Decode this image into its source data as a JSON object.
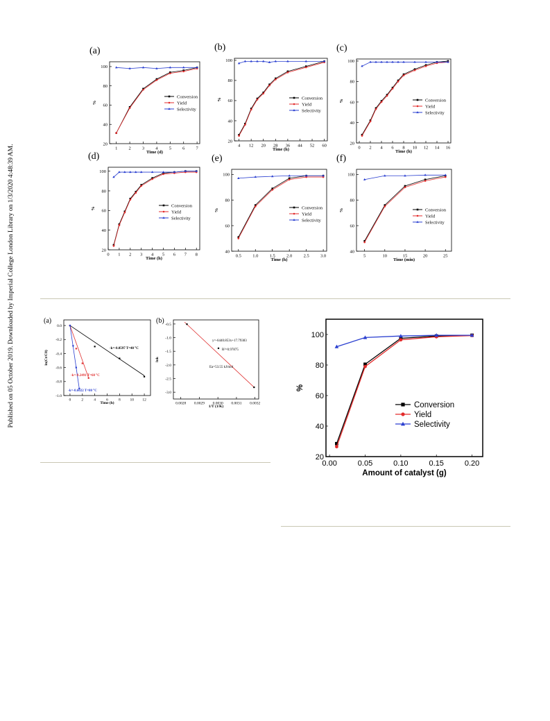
{
  "watermark": "Published on 05 October 2019. Downloaded by Imperial College London Library on 1/3/2020 4:48:39 AM.",
  "colors": {
    "conversion": "#000000",
    "yield": "#e32b2b",
    "selectivity": "#2a3fd0",
    "ratefit": "#e03030"
  },
  "chart_data": [
    {
      "id": "a",
      "type": "line",
      "panel_label": "(a)",
      "xlabel": "Time (d)",
      "ylabel": "%",
      "xlim": [
        0.5,
        7.2
      ],
      "ylim": [
        20,
        105
      ],
      "xticks": [
        1,
        2,
        3,
        4,
        5,
        6,
        7
      ],
      "yticks": [
        20,
        40,
        60,
        80,
        100
      ],
      "series": [
        {
          "name": "Conversion",
          "x": [
            1,
            2,
            3,
            4,
            5,
            6,
            7
          ],
          "y": [
            31,
            58,
            77,
            87,
            94,
            96,
            99
          ]
        },
        {
          "name": "Yield",
          "x": [
            1,
            2,
            3,
            4,
            5,
            6,
            7
          ],
          "y": [
            31,
            57,
            76,
            86,
            93,
            95,
            98
          ]
        },
        {
          "name": "Selectivity",
          "x": [
            1,
            2,
            3,
            4,
            5,
            6,
            7
          ],
          "y": [
            99,
            98,
            99,
            98,
            99,
            99,
            99
          ]
        }
      ]
    },
    {
      "id": "b",
      "type": "line",
      "panel_label": "(b)",
      "xlabel": "Time (h)",
      "ylabel": "%",
      "xlim": [
        1,
        62
      ],
      "ylim": [
        20,
        102
      ],
      "xticks": [
        4,
        12,
        20,
        28,
        36,
        44,
        52,
        60
      ],
      "yticks": [
        20,
        40,
        60,
        80,
        100
      ],
      "series": [
        {
          "name": "Conversion",
          "x": [
            4,
            8,
            12,
            16,
            20,
            24,
            28,
            36,
            48,
            60
          ],
          "y": [
            26,
            37,
            52,
            62,
            68,
            76,
            82,
            89,
            94,
            99
          ]
        },
        {
          "name": "Yield",
          "x": [
            4,
            8,
            12,
            16,
            20,
            24,
            28,
            36,
            48,
            60
          ],
          "y": [
            25,
            36,
            51,
            61,
            67,
            75,
            81,
            88,
            93,
            98
          ]
        },
        {
          "name": "Selectivity",
          "x": [
            4,
            8,
            12,
            16,
            20,
            24,
            28,
            36,
            48,
            60
          ],
          "y": [
            97,
            99,
            99,
            99,
            99,
            98,
            99,
            99,
            99,
            99
          ]
        }
      ]
    },
    {
      "id": "c",
      "type": "line",
      "panel_label": "(c)",
      "xlabel": "Time (h)",
      "ylabel": "%",
      "xlim": [
        -0.5,
        16.5
      ],
      "ylim": [
        20,
        102
      ],
      "xticks": [
        0,
        2,
        4,
        6,
        8,
        10,
        12,
        14,
        16
      ],
      "yticks": [
        20,
        40,
        60,
        80,
        100
      ],
      "series": [
        {
          "name": "Conversion",
          "x": [
            0.5,
            2,
            3,
            4,
            5,
            6,
            7,
            8,
            10,
            12,
            14,
            16
          ],
          "y": [
            28,
            42,
            54,
            61,
            67,
            74,
            81,
            87,
            92,
            96,
            99,
            100
          ]
        },
        {
          "name": "Yield",
          "x": [
            0.5,
            2,
            3,
            4,
            5,
            6,
            7,
            8,
            10,
            12,
            14,
            16
          ],
          "y": [
            27,
            41,
            53,
            60,
            66,
            73,
            80,
            86,
            91,
            95,
            98,
            99
          ]
        },
        {
          "name": "Selectivity",
          "x": [
            0.5,
            2,
            3,
            4,
            5,
            6,
            7,
            8,
            10,
            12,
            14,
            16
          ],
          "y": [
            95,
            99,
            99,
            99,
            99,
            99,
            99,
            99,
            99,
            99,
            99,
            99
          ]
        }
      ]
    },
    {
      "id": "d",
      "type": "line",
      "panel_label": "(d)",
      "xlabel": "Time (h)",
      "ylabel": "%",
      "xlim": [
        0,
        8.3
      ],
      "ylim": [
        20,
        104
      ],
      "xticks": [
        0,
        1,
        2,
        3,
        4,
        5,
        6,
        7,
        8
      ],
      "yticks": [
        20,
        40,
        60,
        80,
        100
      ],
      "series": [
        {
          "name": "Conversion",
          "x": [
            0.5,
            1,
            1.5,
            2,
            2.5,
            3,
            4,
            5,
            6,
            7,
            8
          ],
          "y": [
            25,
            46,
            59,
            72,
            79,
            86,
            93,
            98,
            99,
            100,
            100
          ]
        },
        {
          "name": "Yield",
          "x": [
            0.5,
            1,
            1.5,
            2,
            2.5,
            3,
            4,
            5,
            6,
            7,
            8
          ],
          "y": [
            24,
            45,
            58,
            71,
            78,
            85,
            92,
            97,
            98,
            99,
            99
          ]
        },
        {
          "name": "Selectivity",
          "x": [
            0.5,
            1,
            1.5,
            2,
            2.5,
            3,
            4,
            5,
            6,
            7,
            8
          ],
          "y": [
            94,
            99,
            99,
            99,
            99,
            99,
            99,
            99,
            99,
            100,
            100
          ]
        }
      ]
    },
    {
      "id": "e",
      "type": "line",
      "panel_label": "(e)",
      "xlabel": "Time (h)",
      "ylabel": "%",
      "xlim": [
        0.3,
        3.1
      ],
      "ylim": [
        40,
        104
      ],
      "xticks": [
        0.5,
        1.0,
        1.5,
        2.0,
        2.5,
        3.0
      ],
      "yticks": [
        40,
        60,
        80,
        100
      ],
      "series": [
        {
          "name": "Conversion",
          "x": [
            0.5,
            1,
            1.5,
            2,
            2.5,
            3
          ],
          "y": [
            51,
            76,
            89,
            97,
            99,
            99
          ]
        },
        {
          "name": "Yield",
          "x": [
            0.5,
            1,
            1.5,
            2,
            2.5,
            3
          ],
          "y": [
            50,
            75,
            88,
            96,
            98,
            98
          ]
        },
        {
          "name": "Selectivity",
          "x": [
            0.5,
            1,
            1.5,
            2,
            2.5,
            3
          ],
          "y": [
            97,
            98,
            98.5,
            99,
            99,
            99
          ]
        }
      ]
    },
    {
      "id": "f",
      "type": "line",
      "panel_label": "(f)",
      "xlabel": "Time (min)",
      "ylabel": "%",
      "xlim": [
        3,
        26.5
      ],
      "ylim": [
        40,
        104
      ],
      "xticks": [
        5,
        10,
        15,
        20,
        25
      ],
      "yticks": [
        40,
        60,
        80,
        100
      ],
      "series": [
        {
          "name": "Conversion",
          "x": [
            5,
            10,
            15,
            20,
            25
          ],
          "y": [
            48,
            76,
            91,
            96,
            99
          ]
        },
        {
          "name": "Yield",
          "x": [
            5,
            10,
            15,
            20,
            25
          ],
          "y": [
            47,
            75,
            90,
            95,
            98
          ]
        },
        {
          "name": "Selectivity",
          "x": [
            5,
            10,
            15,
            20,
            25
          ],
          "y": [
            96,
            99,
            99,
            99.5,
            99.5
          ]
        }
      ]
    },
    {
      "id": "k1",
      "type": "line",
      "panel_label": "(a)",
      "xlabel": "Time (h)",
      "ylabel": "ln(Ct/C0)",
      "xlim": [
        -1,
        13
      ],
      "ylim": [
        -1.0,
        0.08
      ],
      "xticks": [
        0,
        2,
        4,
        6,
        8,
        10,
        12
      ],
      "yticks": [
        -1.0,
        -0.8,
        -0.6,
        -0.4,
        -0.2,
        0.0
      ],
      "points": [
        {
          "name": "T=40 °C",
          "x": [
            0,
            4,
            8,
            12
          ],
          "y": [
            0,
            -0.3,
            -0.47,
            -0.73
          ]
        },
        {
          "name": "T=60 °C",
          "x": [
            0,
            1,
            2,
            3
          ],
          "y": [
            0,
            -0.33,
            -0.54,
            -0.75
          ]
        },
        {
          "name": "T=80 °C",
          "x": [
            0,
            0.5,
            1,
            1.5
          ],
          "y": [
            0,
            -0.29,
            -0.6,
            -0.9
          ]
        }
      ],
      "fits": [
        {
          "slope": -0.0597,
          "x": [
            0,
            12
          ]
        },
        {
          "slope": -0.2491,
          "x": [
            0,
            3
          ]
        },
        {
          "slope": -0.6022,
          "x": [
            0,
            1.5
          ]
        }
      ],
      "annotations": [
        "-k=-0.0597   T=40 °C",
        "-k=-0.2491   T=60 °C",
        "-k=-0.6022   T=80 °C"
      ]
    },
    {
      "id": "k2",
      "type": "scatter",
      "panel_label": "(b)",
      "xlabel": "1/T (1/K)",
      "ylabel": "lnk",
      "xlim": [
        0.00276,
        0.00322
      ],
      "ylim": [
        -3.25,
        -0.35
      ],
      "xticks": [
        0.0028,
        0.0029,
        0.003,
        0.0031,
        0.0032
      ],
      "yticks": [
        -3.0,
        -2.5,
        -2.0,
        -1.5,
        -1.0,
        -0.5
      ],
      "points": {
        "x": [
          0.002833,
          0.003003,
          0.003195
        ],
        "y": [
          -0.507,
          -1.39,
          -2.82
        ]
      },
      "fit": {
        "x": [
          0.00282,
          0.003195
        ],
        "y": [
          -0.43,
          -2.82
        ]
      },
      "annotations": [
        "y=-6440.853x+17.79383",
        "R²=0.97875",
        "Ea=53.55 kJ/mol"
      ]
    },
    {
      "id": "cat",
      "type": "line",
      "panel_label": "",
      "xlabel": "Amount of catalyst (g)",
      "ylabel": "%",
      "xlim": [
        -0.005,
        0.215
      ],
      "ylim": [
        20,
        110
      ],
      "xticks": [
        0.0,
        0.05,
        0.1,
        0.15,
        0.2
      ],
      "yticks": [
        20,
        40,
        60,
        80,
        100
      ],
      "series": [
        {
          "name": "Conversion",
          "x": [
            0.01,
            0.05,
            0.1,
            0.15,
            0.2
          ],
          "y": [
            28.5,
            80.5,
            97.5,
            99,
            99.5
          ]
        },
        {
          "name": "Yield",
          "x": [
            0.01,
            0.05,
            0.1,
            0.15,
            0.2
          ],
          "y": [
            26.5,
            79,
            96.5,
            98.5,
            99.3
          ]
        },
        {
          "name": "Selectivity",
          "x": [
            0.01,
            0.05,
            0.1,
            0.15,
            0.2
          ],
          "y": [
            92,
            98,
            99,
            99.5,
            99.5
          ]
        }
      ]
    }
  ]
}
